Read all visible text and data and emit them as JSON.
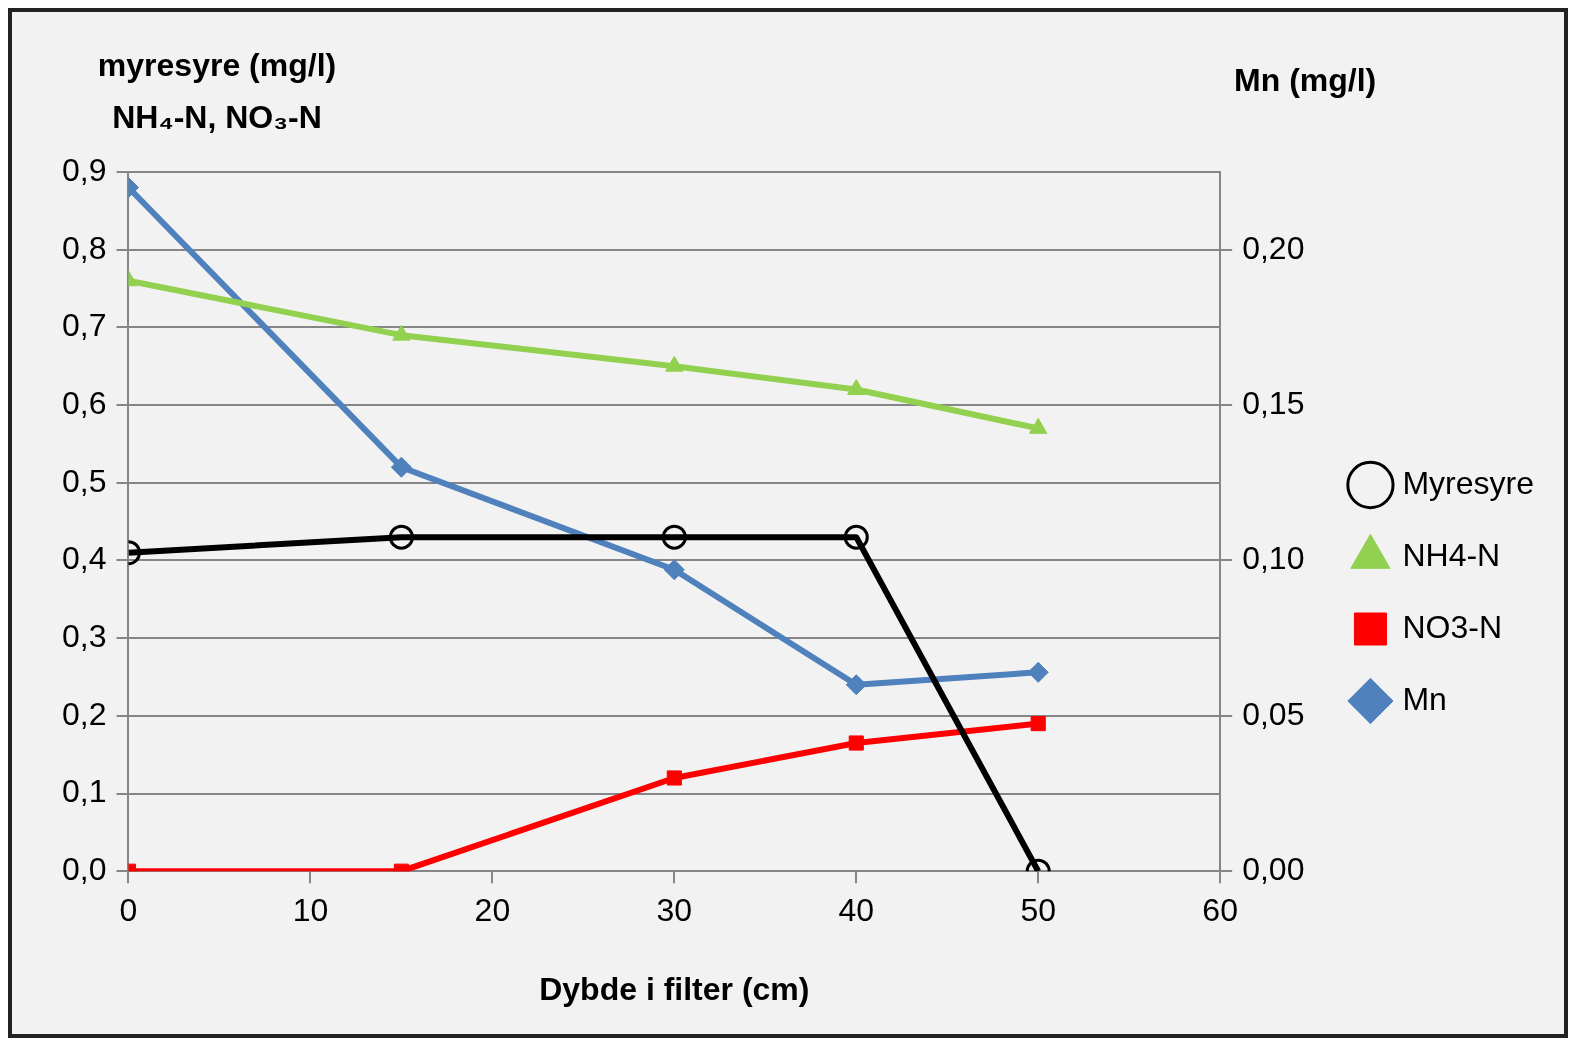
{
  "chart_data": {
    "type": "line",
    "xlabel": "Dybde i filter (cm)",
    "ylabel": "myresyre (mg/l)\nNH₄-N, NO₃-N",
    "y2label": "Mn (mg/l)",
    "x": [
      0,
      15,
      30,
      40,
      50
    ],
    "series": [
      {
        "name": "Myresyre",
        "color": "#000000",
        "marker": "circle",
        "values": [
          0.41,
          0.43,
          0.43,
          0.43,
          0.0
        ]
      },
      {
        "name": "NH4-N",
        "color": "#92d050",
        "marker": "triangle",
        "values": [
          0.76,
          0.69,
          0.65,
          0.62,
          0.57
        ]
      },
      {
        "name": "NO3-N",
        "color": "#ff0000",
        "marker": "square",
        "values": [
          0.0,
          0.0,
          0.12,
          0.165,
          0.19
        ]
      },
      {
        "name": "Mn",
        "color": "#4f81bd",
        "marker": "diamond",
        "axis": "y2",
        "values": [
          0.22,
          0.13,
          0.097,
          0.06,
          0.064
        ]
      }
    ],
    "xlim": [
      0,
      60
    ],
    "xticks": [
      0,
      10,
      20,
      30,
      40,
      50,
      60
    ],
    "ylim": [
      0,
      0.9
    ],
    "yticks": [
      {
        "value": 0,
        "label": "0,0"
      },
      {
        "value": 0.1,
        "label": "0,1"
      },
      {
        "value": 0.2,
        "label": "0,2"
      },
      {
        "value": 0.3,
        "label": "0,3"
      },
      {
        "value": 0.4,
        "label": "0,4"
      },
      {
        "value": 0.5,
        "label": "0,5"
      },
      {
        "value": 0.6,
        "label": "0,6"
      },
      {
        "value": 0.7,
        "label": "0,7"
      },
      {
        "value": 0.8,
        "label": "0,8"
      },
      {
        "value": 0.9,
        "label": "0,9"
      }
    ],
    "y2lim": [
      0,
      0.225
    ],
    "y2ticks": [
      {
        "value": 0,
        "label": "0,00"
      },
      {
        "value": 0.05,
        "label": "0,05"
      },
      {
        "value": 0.1,
        "label": "0,10"
      },
      {
        "value": 0.15,
        "label": "0,15"
      },
      {
        "value": 0.2,
        "label": "0,20"
      }
    ],
    "grid": "y",
    "legend": "right",
    "line_style": "solid"
  }
}
